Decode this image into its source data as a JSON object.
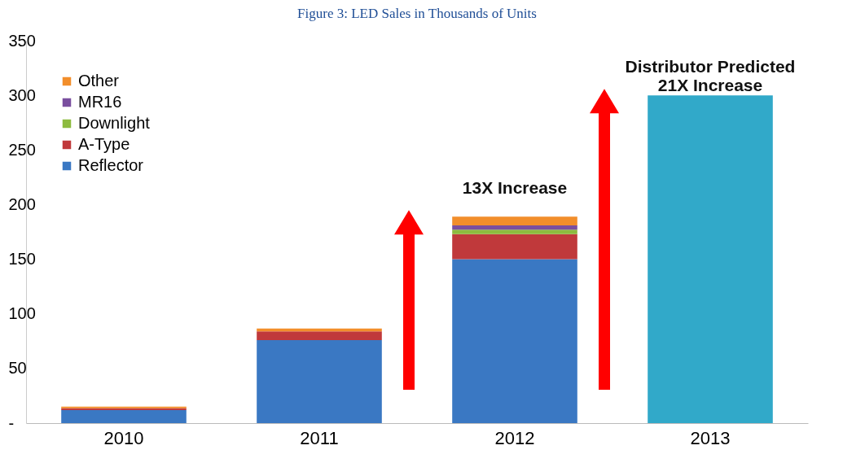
{
  "chart_data": {
    "type": "bar",
    "title": "Figure 3: LED Sales in Thousands of Units",
    "stacked": true,
    "categories": [
      "2010",
      "2011",
      "2012",
      "2013"
    ],
    "series": [
      {
        "name": "Reflector",
        "color": "#3a78c3",
        "values": [
          12,
          76,
          150,
          null
        ]
      },
      {
        "name": "A-Type",
        "color": "#c0393b",
        "values": [
          1.5,
          8,
          23,
          null
        ]
      },
      {
        "name": "Downlight",
        "color": "#8dbb3f",
        "values": [
          null,
          null,
          4,
          null
        ]
      },
      {
        "name": "MR16",
        "color": "#7a4f9f",
        "values": [
          null,
          null,
          4,
          null
        ]
      },
      {
        "name": "Other",
        "color": "#f28e2b",
        "values": [
          1.5,
          2.5,
          8,
          null
        ]
      },
      {
        "color": "#31a9c9",
        "values": [
          null,
          null,
          null,
          300
        ]
      }
    ],
    "ylim": [
      0,
      350
    ],
    "yticks": [
      {
        "value": 0,
        "label": "-"
      },
      50,
      100,
      150,
      200,
      250,
      300,
      350
    ],
    "grid": false,
    "legend": "top left",
    "annotations": [
      {
        "text": "13X Increase",
        "x": "2012",
        "y": 189
      },
      {
        "text": "Distributor Predicted\n21X Increase",
        "x": "2013",
        "y": 300
      }
    ]
  }
}
